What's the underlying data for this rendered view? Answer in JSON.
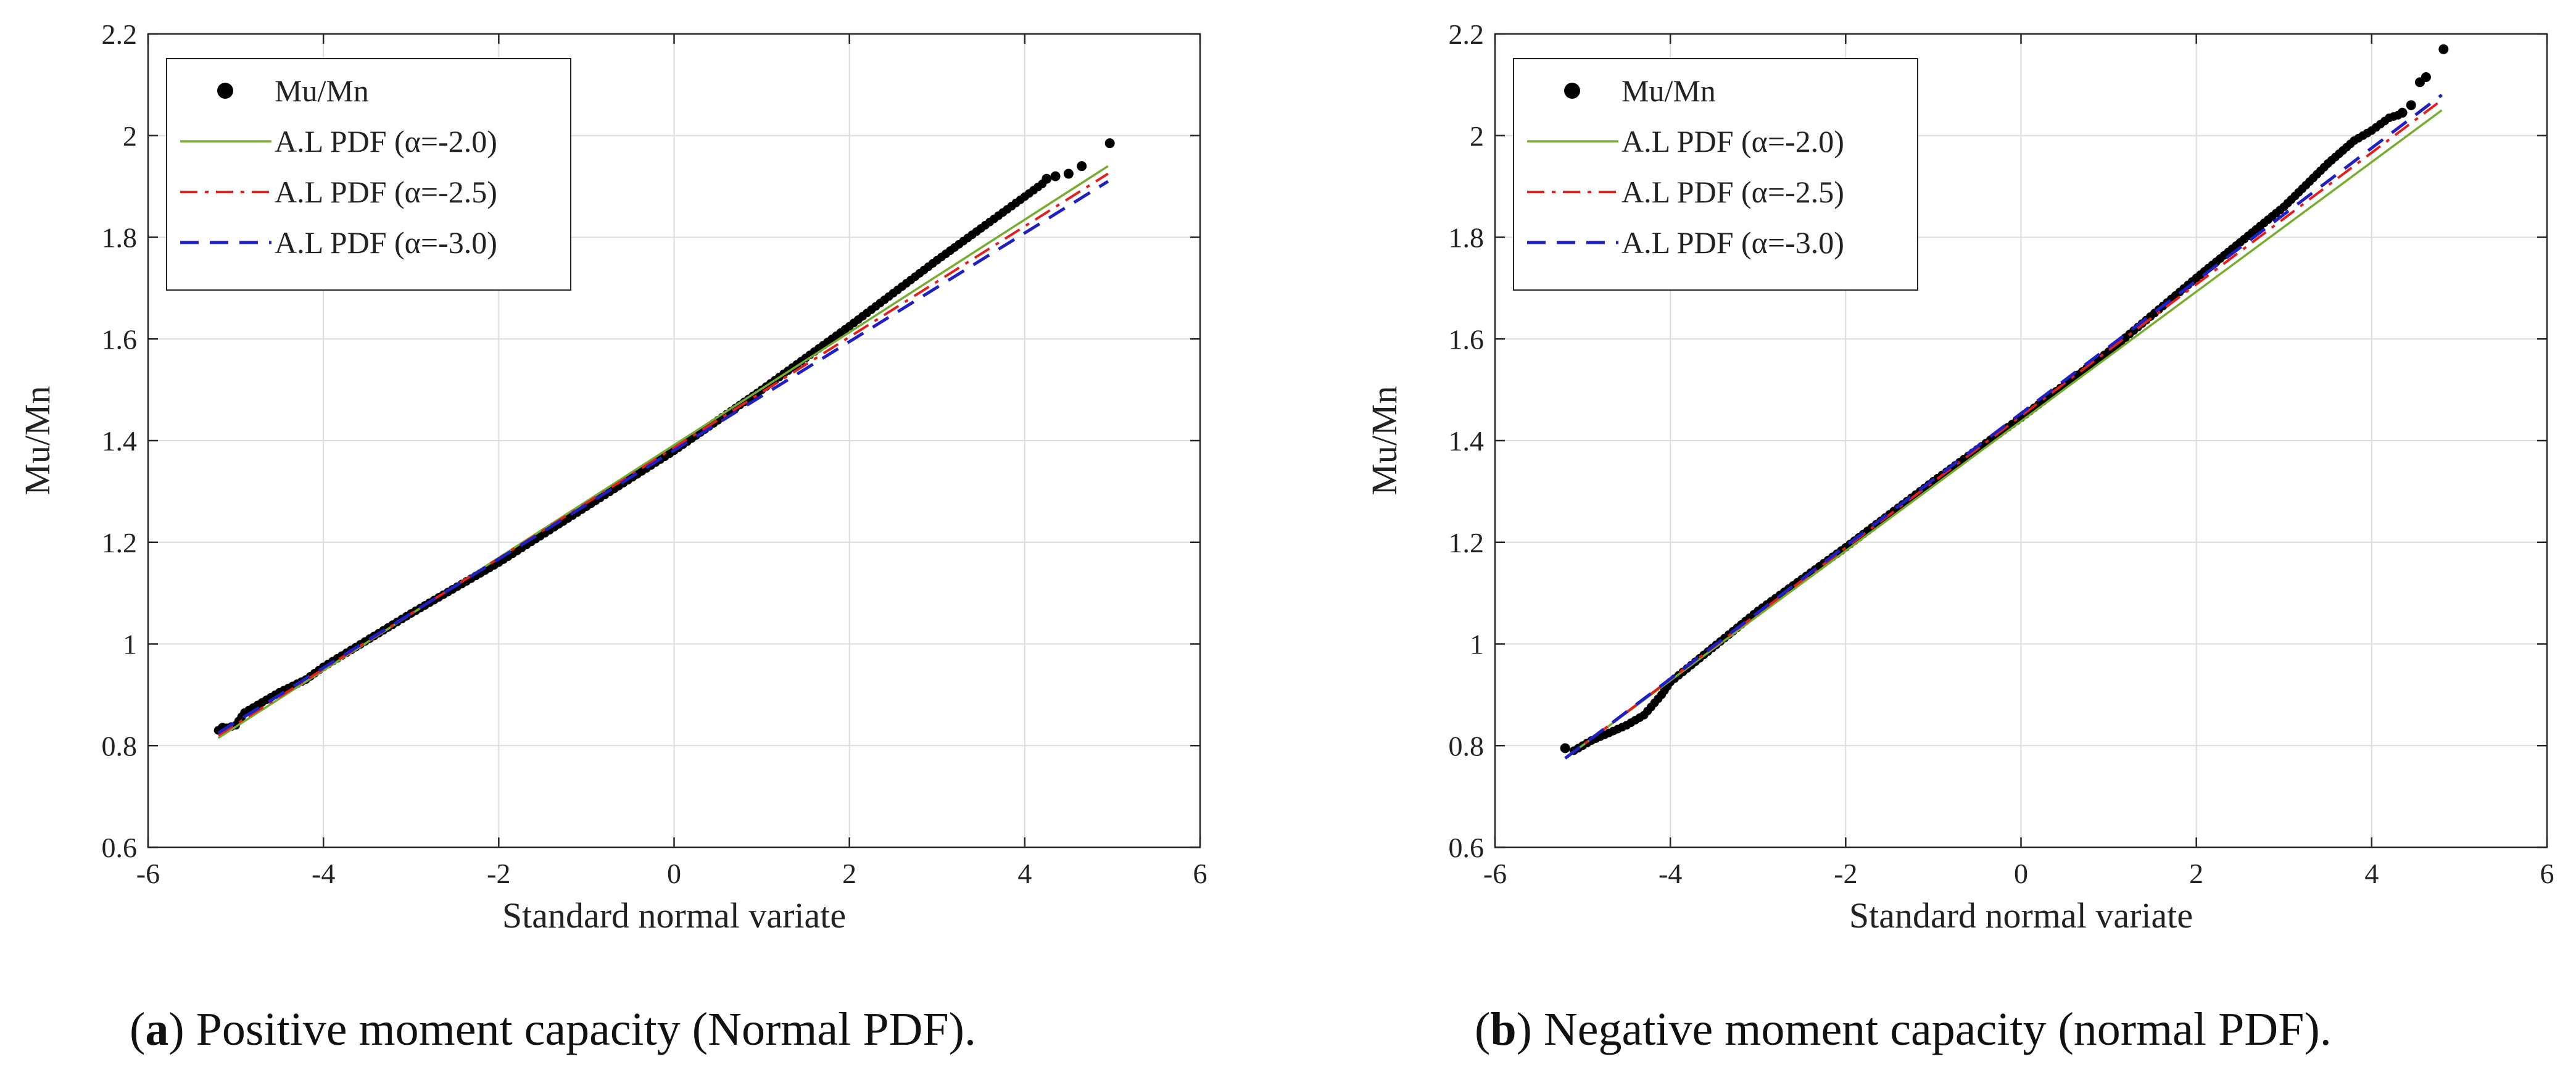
{
  "chart_data": [
    {
      "type": "scatter",
      "panel": "a",
      "caption_letter": "a",
      "caption_text": ") Positive moment capacity (Normal PDF).",
      "title": "",
      "xlabel": "Standard normal variate",
      "ylabel": "Mu/Mn",
      "xlim": [
        -6,
        6
      ],
      "ylim": [
        0.6,
        2.2
      ],
      "xticks": [
        -6,
        -4,
        -2,
        0,
        2,
        4,
        6
      ],
      "xtick_labels": [
        "-6",
        "-4",
        "-2",
        "0",
        "2",
        "4",
        "6"
      ],
      "yticks": [
        0.6,
        0.8,
        1.0,
        1.2,
        1.4,
        1.6,
        1.8,
        2.0,
        2.2
      ],
      "ytick_labels": [
        "0.6",
        "0.8",
        "1",
        "1.2",
        "1.4",
        "1.6",
        "1.8",
        "2",
        "2.2"
      ],
      "grid": true,
      "legend_position": "top-left",
      "legend": [
        "Mu/Mn",
        "A.L PDF (α=-2.0)",
        "A.L PDF (α=-2.5)",
        "A.L PDF (α=-3.0)"
      ],
      "scatter": {
        "name": "Mu/Mn",
        "color": "#000000",
        "curve_x": [
          -5.2,
          -5.0,
          -4.9,
          -4.8,
          -4.7,
          -4.5,
          -4.2,
          -4.0,
          -3.0,
          -2.0,
          -1.0,
          0.0,
          1.0,
          2.0,
          3.0,
          3.6,
          4.0,
          4.2
        ],
        "curve_y": [
          0.83,
          0.84,
          0.865,
          0.875,
          0.885,
          0.905,
          0.93,
          0.955,
          1.06,
          1.16,
          1.27,
          1.38,
          1.5,
          1.625,
          1.755,
          1.83,
          1.88,
          1.905
        ],
        "tail_x": [
          -5.15,
          4.25,
          4.35,
          4.5,
          4.65,
          4.97
        ],
        "tail_y": [
          0.835,
          1.915,
          1.92,
          1.925,
          1.94,
          1.985
        ]
      },
      "series": [
        {
          "name": "A.L PDF (α=-2.0)",
          "color": "#77AC30",
          "style": "solid",
          "x": [
            -5.2,
            4.95
          ],
          "y": [
            0.815,
            1.94
          ]
        },
        {
          "name": "A.L PDF (α=-2.5)",
          "color": "#E02020",
          "style": "dashdot",
          "x": [
            -5.2,
            4.95
          ],
          "y": [
            0.82,
            1.925
          ]
        },
        {
          "name": "A.L PDF (α=-3.0)",
          "color": "#2020C0",
          "style": "dashed",
          "x": [
            -5.2,
            4.95
          ],
          "y": [
            0.825,
            1.91
          ]
        }
      ]
    },
    {
      "type": "scatter",
      "panel": "b",
      "caption_letter": "b",
      "caption_text": ") Negative moment capacity (normal PDF).",
      "title": "",
      "xlabel": "Standard normal variate",
      "ylabel": "Mu/Mn",
      "xlim": [
        -6,
        6
      ],
      "ylim": [
        0.6,
        2.2
      ],
      "xticks": [
        -6,
        -4,
        -2,
        0,
        2,
        4,
        6
      ],
      "xtick_labels": [
        "-6",
        "-4",
        "-2",
        "0",
        "2",
        "4",
        "6"
      ],
      "yticks": [
        0.6,
        0.8,
        1.0,
        1.2,
        1.4,
        1.6,
        1.8,
        2.0,
        2.2
      ],
      "ytick_labels": [
        "0.6",
        "0.8",
        "1",
        "1.2",
        "1.4",
        "1.6",
        "1.8",
        "2",
        "2.2"
      ],
      "grid": true,
      "legend_position": "top-left",
      "legend": [
        "Mu/Mn",
        "A.L PDF (α=-2.0)",
        "A.L PDF (α=-2.5)",
        "A.L PDF (α=-3.0)"
      ],
      "scatter": {
        "name": "Mu/Mn",
        "color": "#000000",
        "curve_x": [
          -5.1,
          -4.9,
          -4.7,
          -4.5,
          -4.3,
          -4.1,
          -4.0,
          -3.0,
          -2.0,
          -1.0,
          0.0,
          1.0,
          2.0,
          2.5,
          3.0,
          3.5,
          3.8,
          4.0,
          4.2,
          4.3
        ],
        "curve_y": [
          0.79,
          0.81,
          0.825,
          0.84,
          0.86,
          0.9,
          0.925,
          1.065,
          1.19,
          1.32,
          1.445,
          1.575,
          1.72,
          1.79,
          1.86,
          1.945,
          1.99,
          2.01,
          2.035,
          2.04
        ],
        "tail_x": [
          -5.2,
          4.35,
          4.45,
          4.55,
          4.62,
          4.82
        ],
        "tail_y": [
          0.795,
          2.045,
          2.06,
          2.105,
          2.115,
          2.17
        ]
      },
      "series": [
        {
          "name": "A.L PDF (α=-2.0)",
          "color": "#77AC30",
          "style": "solid",
          "x": [
            -5.2,
            4.8
          ],
          "y": [
            0.775,
            2.05
          ]
        },
        {
          "name": "A.L PDF (α=-2.5)",
          "color": "#E02020",
          "style": "dashdot",
          "x": [
            -5.2,
            4.8
          ],
          "y": [
            0.775,
            2.07
          ]
        },
        {
          "name": "A.L PDF (α=-3.0)",
          "color": "#2020C0",
          "style": "dashed",
          "x": [
            -5.2,
            4.8
          ],
          "y": [
            0.775,
            2.08
          ]
        }
      ]
    }
  ]
}
